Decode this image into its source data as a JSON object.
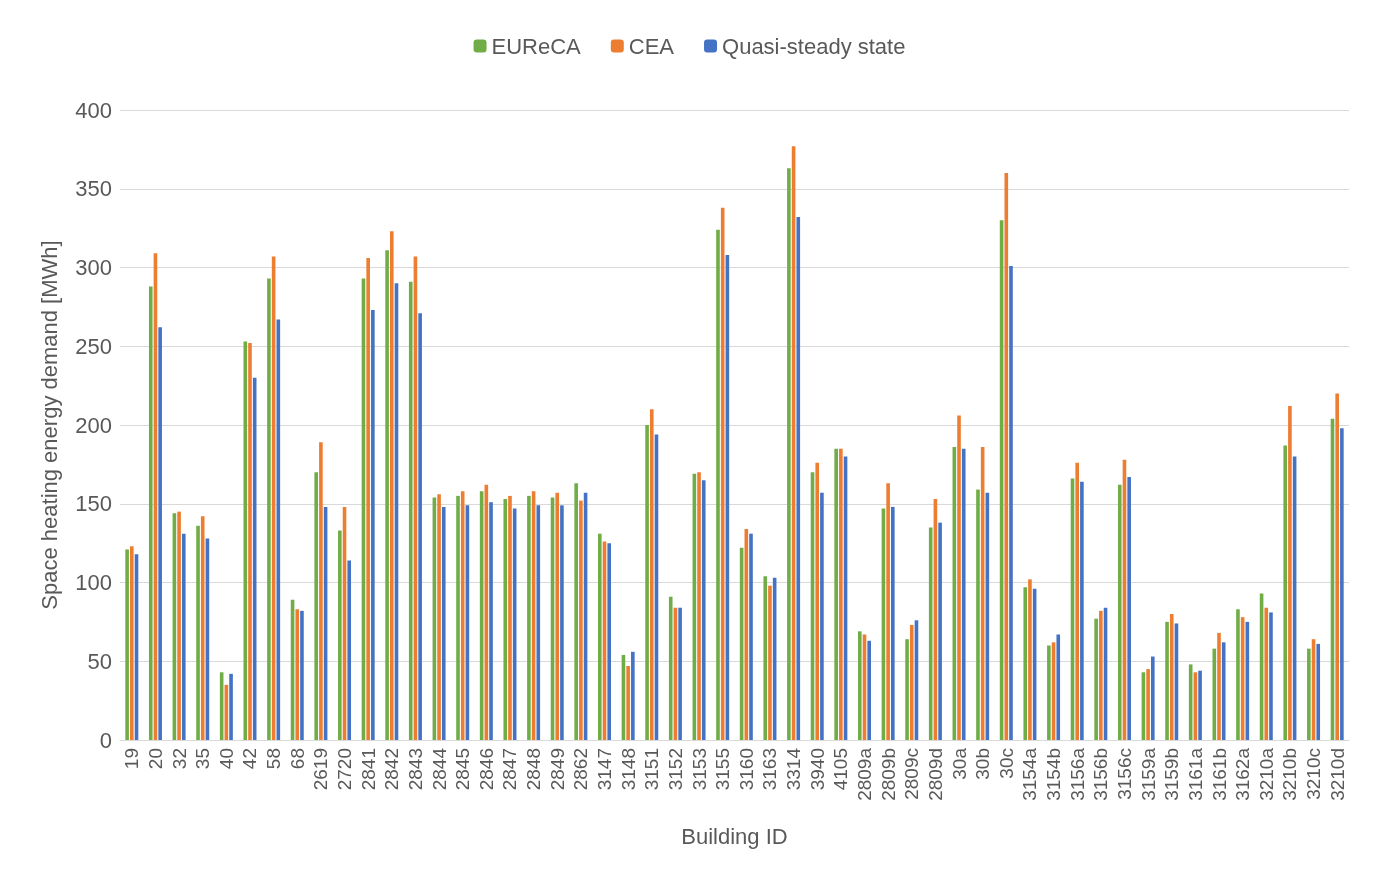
{
  "chart_data": {
    "type": "bar",
    "xlabel": "Building ID",
    "ylabel": "Space heating energy demand [MWh]",
    "categories": [
      "19",
      "20",
      "32",
      "35",
      "40",
      "42",
      "58",
      "68",
      "2619",
      "2720",
      "2841",
      "2842",
      "2843",
      "2844",
      "2845",
      "2846",
      "2847",
      "2848",
      "2849",
      "2862",
      "3147",
      "3148",
      "3151",
      "3152",
      "3153",
      "3155",
      "3160",
      "3163",
      "3314",
      "3940",
      "4105",
      "2809a",
      "2809b",
      "2809c",
      "2809d",
      "30a",
      "30b",
      "30c",
      "3154a",
      "3154b",
      "3156a",
      "3156b",
      "3156c",
      "3159a",
      "3159b",
      "3161a",
      "3161b",
      "3162a",
      "3210a",
      "3210b",
      "3210c",
      "3210d"
    ],
    "series": [
      {
        "name": "EUReCA",
        "color": "#70ad47",
        "values": [
          121,
          288,
          144,
          136,
          43,
          253,
          293,
          89,
          170,
          133,
          293,
          311,
          291,
          154,
          155,
          158,
          153,
          155,
          154,
          163,
          131,
          54,
          200,
          91,
          169,
          324,
          122,
          104,
          363,
          170,
          185,
          69,
          147,
          64,
          135,
          186,
          159,
          330,
          97,
          60,
          166,
          77,
          162,
          43,
          75,
          48,
          58,
          83,
          93,
          187,
          58,
          204
        ]
      },
      {
        "name": "CEA",
        "color": "#ed7d31",
        "values": [
          123,
          309,
          145,
          142,
          35,
          252,
          307,
          83,
          189,
          148,
          306,
          323,
          307,
          156,
          158,
          162,
          155,
          158,
          157,
          152,
          126,
          47,
          210,
          84,
          170,
          338,
          134,
          98,
          377,
          176,
          185,
          67,
          163,
          73,
          153,
          206,
          186,
          360,
          102,
          62,
          176,
          82,
          178,
          45,
          80,
          43,
          68,
          78,
          84,
          212,
          64,
          220
        ]
      },
      {
        "name": "Quasi-steady state",
        "color": "#4472c4",
        "values": [
          118,
          262,
          131,
          128,
          42,
          230,
          267,
          82,
          148,
          114,
          273,
          290,
          271,
          148,
          149,
          151,
          147,
          149,
          149,
          157,
          125,
          56,
          194,
          84,
          165,
          308,
          131,
          103,
          332,
          157,
          180,
          63,
          148,
          76,
          138,
          185,
          157,
          301,
          96,
          67,
          164,
          84,
          167,
          53,
          74,
          44,
          62,
          75,
          81,
          180,
          61,
          198
        ]
      }
    ],
    "ylim": [
      0,
      400
    ],
    "yticks": [
      0,
      50,
      100,
      150,
      200,
      250,
      300,
      350,
      400
    ],
    "grid": "y",
    "legend": "top"
  }
}
